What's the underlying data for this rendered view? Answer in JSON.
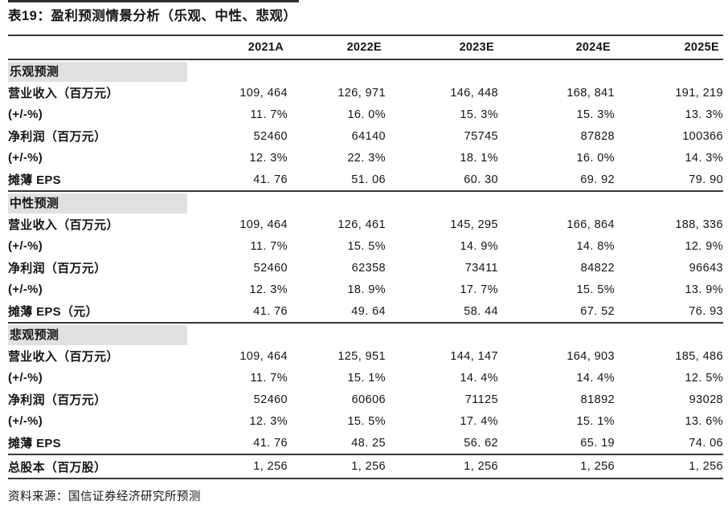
{
  "title": "表19：盈利预测情景分析（乐观、中性、悲观）",
  "footer": "资料来源：国信证券经济研究所预测",
  "colors": {
    "rule": "#383838",
    "section_band_bg": "#e0e0e0",
    "text": "#151515"
  },
  "table": {
    "columns": [
      "",
      "2021A",
      "2022E",
      "2023E",
      "2024E",
      "2025E"
    ],
    "sections": [
      {
        "name": "乐观预测",
        "rows": [
          {
            "label": "营业收入（百万元）",
            "values": [
              "109, 464",
              "126, 971",
              "146, 448",
              "168, 841",
              "191, 219"
            ]
          },
          {
            "label": "(+/-%)",
            "values": [
              "11. 7%",
              "16. 0%",
              "15. 3%",
              "15. 3%",
              "13. 3%"
            ]
          },
          {
            "label": "净利润（百万元）",
            "values": [
              "52460",
              "64140",
              "75745",
              "87828",
              "100366"
            ]
          },
          {
            "label": "(+/-%)",
            "values": [
              "12. 3%",
              "22. 3%",
              "18. 1%",
              "16. 0%",
              "14. 3%"
            ]
          },
          {
            "label": "摊薄 EPS",
            "values": [
              "41. 76",
              "51. 06",
              "60. 30",
              "69. 92",
              "79. 90"
            ]
          }
        ]
      },
      {
        "name": "中性预测",
        "rows": [
          {
            "label": "营业收入（百万元）",
            "values": [
              "109, 464",
              "126, 461",
              "145, 295",
              "166, 864",
              "188, 336"
            ]
          },
          {
            "label": "(+/-%)",
            "values": [
              "11. 7%",
              "15. 5%",
              "14. 9%",
              "14. 8%",
              "12. 9%"
            ]
          },
          {
            "label": "净利润（百万元）",
            "values": [
              "52460",
              "62358",
              "73411",
              "84822",
              "96643"
            ]
          },
          {
            "label": "(+/-%)",
            "values": [
              "12. 3%",
              "18. 9%",
              "17. 7%",
              "15. 5%",
              "13. 9%"
            ]
          },
          {
            "label": "摊薄 EPS（元）",
            "values": [
              "41. 76",
              "49. 64",
              "58. 44",
              "67. 52",
              "76. 93"
            ]
          }
        ]
      },
      {
        "name": "悲观预测",
        "rows": [
          {
            "label": "营业收入（百万元）",
            "values": [
              "109, 464",
              "125, 951",
              "144, 147",
              "164, 903",
              "185, 486"
            ]
          },
          {
            "label": "(+/-%)",
            "values": [
              "11. 7%",
              "15. 1%",
              "14. 4%",
              "14. 4%",
              "12. 5%"
            ]
          },
          {
            "label": "净利润（百万元）",
            "values": [
              "52460",
              "60606",
              "71125",
              "81892",
              "93028"
            ]
          },
          {
            "label": "(+/-%)",
            "values": [
              "12. 3%",
              "15. 5%",
              "17. 4%",
              "15. 1%",
              "13. 6%"
            ]
          },
          {
            "label": "摊薄 EPS",
            "values": [
              "41. 76",
              "48. 25",
              "56. 62",
              "65. 19",
              "74. 06"
            ]
          }
        ]
      }
    ],
    "total_row": {
      "label": "总股本（百万股）",
      "values": [
        "1, 256",
        "1, 256",
        "1, 256",
        "1, 256",
        "1, 256"
      ]
    }
  }
}
